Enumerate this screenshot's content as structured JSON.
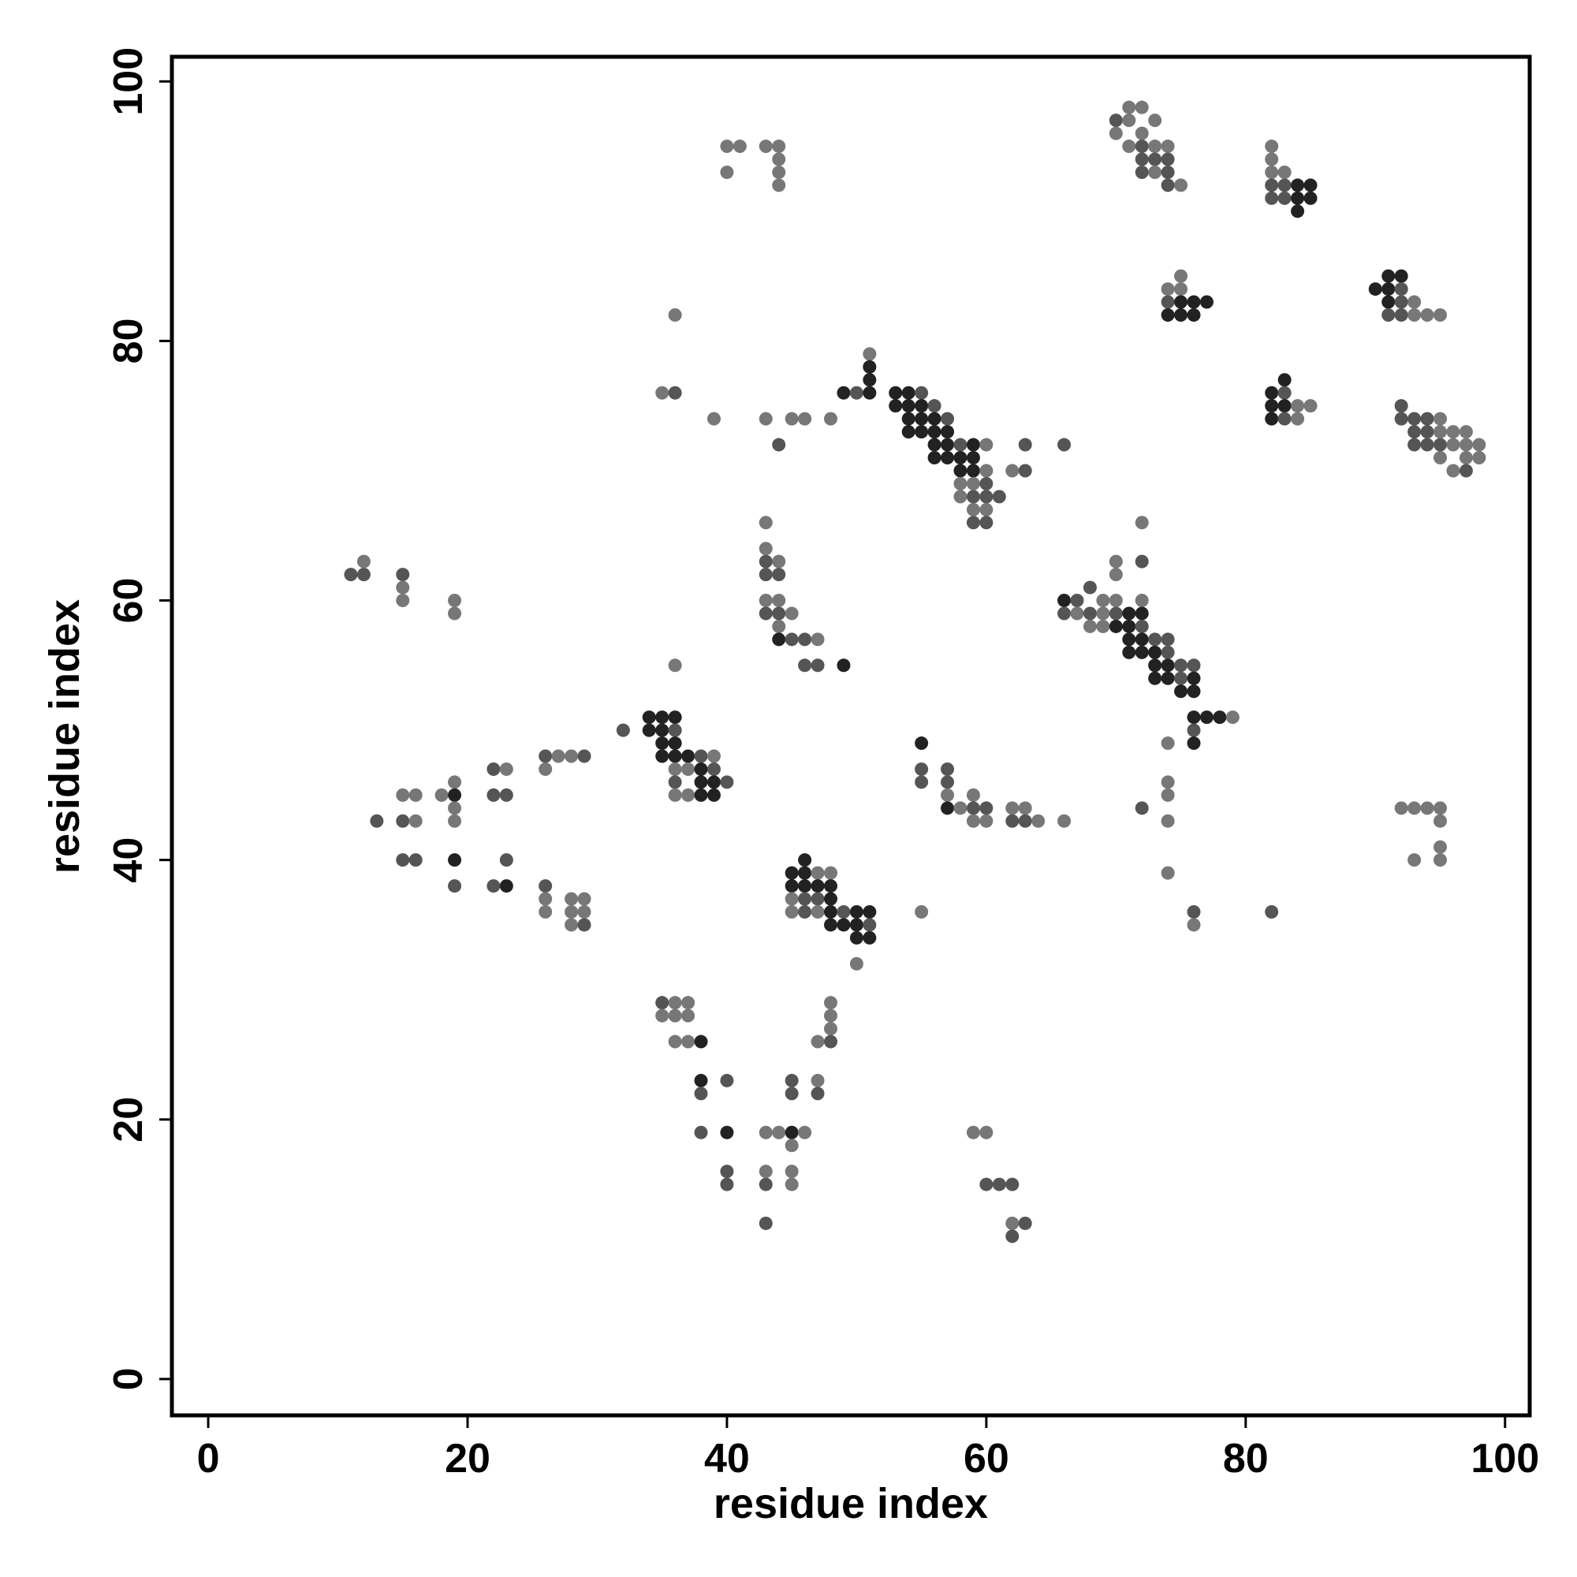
{
  "chart_data": {
    "type": "scatter",
    "xlabel": "residue index",
    "ylabel": "residue index",
    "xlim": [
      -2.8,
      101.9
    ],
    "ylim": [
      -2.8,
      101.9
    ],
    "xticks": [
      0,
      20,
      40,
      60,
      80,
      100
    ],
    "yticks": [
      0,
      20,
      40,
      60,
      80,
      100
    ],
    "grid": false,
    "x": [
      40,
      41,
      40,
      43,
      44,
      44,
      44,
      44,
      70,
      71,
      72,
      70,
      71,
      72,
      73,
      71,
      72,
      73,
      74,
      72,
      73,
      74,
      72,
      73,
      74,
      74,
      75,
      82,
      82,
      82,
      83,
      82,
      83,
      84,
      85,
      82,
      83,
      84,
      85,
      84,
      75,
      74,
      75,
      74,
      75,
      76,
      77,
      74,
      75,
      76,
      91,
      92,
      90,
      91,
      92,
      91,
      92,
      93,
      91,
      92,
      93,
      94,
      95,
      83,
      82,
      83,
      82,
      83,
      84,
      85,
      82,
      83,
      84,
      92,
      92,
      93,
      94,
      95,
      93,
      94,
      95,
      96,
      97,
      93,
      94,
      95,
      96,
      97,
      98,
      95,
      97,
      98,
      96,
      97,
      51,
      51,
      51,
      49,
      50,
      51,
      48,
      53,
      54,
      55,
      53,
      54,
      55,
      56,
      54,
      55,
      56,
      57,
      54,
      55,
      56,
      57,
      56,
      57,
      58,
      59,
      60,
      56,
      57,
      58,
      59,
      58,
      59,
      60,
      62,
      63,
      63,
      66,
      58,
      59,
      60,
      58,
      59,
      60,
      61,
      59,
      60,
      59,
      60,
      36,
      35,
      36,
      39,
      43,
      45,
      46,
      44,
      11,
      12,
      12,
      15,
      15,
      15,
      19,
      19,
      43,
      43,
      43,
      44,
      43,
      44,
      43,
      44,
      43,
      44,
      45,
      44,
      44,
      45,
      46,
      47,
      46,
      47,
      49,
      36,
      72,
      70,
      72,
      70,
      66,
      67,
      68,
      69,
      70,
      72,
      66,
      67,
      68,
      69,
      70,
      71,
      72,
      68,
      69,
      70,
      71,
      72,
      71,
      72,
      73,
      74,
      71,
      72,
      73,
      74,
      73,
      74,
      75,
      76,
      73,
      74,
      75,
      76,
      75,
      76,
      76,
      77,
      78,
      79,
      76,
      76,
      32,
      34,
      35,
      36,
      34,
      35,
      36,
      35,
      36,
      35,
      36,
      37,
      38,
      39,
      36,
      37,
      38,
      39,
      36,
      38,
      39,
      40,
      36,
      37,
      38,
      39,
      26,
      27,
      28,
      29,
      26,
      22,
      23,
      22,
      23,
      15,
      16,
      18,
      19,
      19,
      19,
      19,
      13,
      15,
      16,
      15,
      16,
      19,
      23,
      19,
      22,
      23,
      26,
      26,
      28,
      29,
      26,
      28,
      29,
      28,
      29,
      55,
      55,
      57,
      55,
      57,
      57,
      59,
      57,
      58,
      59,
      60,
      59,
      60,
      62,
      63,
      62,
      63,
      64,
      66,
      74,
      74,
      74,
      72,
      74,
      74,
      76,
      76,
      82,
      92,
      93,
      94,
      95,
      95,
      95,
      93,
      95,
      46,
      45,
      46,
      47,
      48,
      45,
      46,
      47,
      48,
      45,
      46,
      47,
      48,
      45,
      46,
      47,
      48,
      49,
      50,
      51,
      48,
      49,
      50,
      51,
      50,
      51,
      50,
      55,
      35,
      36,
      37,
      35,
      36,
      37,
      36,
      37,
      38,
      48,
      48,
      48,
      47,
      48,
      38,
      40,
      45,
      47,
      38,
      45,
      47,
      38,
      40,
      43,
      44,
      45,
      46,
      45,
      40,
      43,
      45,
      40,
      43,
      45,
      43,
      59,
      60,
      60,
      61,
      62,
      62,
      63,
      62
    ],
    "y": [
      95,
      95,
      93,
      95,
      95,
      94,
      93,
      92,
      97,
      98,
      98,
      96,
      97,
      96,
      97,
      95,
      95,
      95,
      95,
      94,
      94,
      94,
      93,
      93,
      93,
      92,
      92,
      95,
      94,
      93,
      93,
      92,
      92,
      92,
      92,
      91,
      91,
      91,
      91,
      90,
      85,
      84,
      84,
      83,
      83,
      83,
      83,
      82,
      82,
      82,
      85,
      85,
      84,
      84,
      84,
      83,
      83,
      83,
      82,
      82,
      82,
      82,
      82,
      77,
      76,
      76,
      75,
      75,
      75,
      75,
      74,
      74,
      74,
      75,
      74,
      74,
      74,
      74,
      73,
      73,
      73,
      73,
      73,
      72,
      72,
      72,
      72,
      72,
      72,
      71,
      71,
      71,
      70,
      70,
      79,
      78,
      77,
      76,
      76,
      76,
      74,
      76,
      76,
      76,
      75,
      75,
      75,
      75,
      74,
      74,
      74,
      74,
      73,
      73,
      73,
      73,
      72,
      72,
      72,
      72,
      72,
      71,
      71,
      71,
      71,
      70,
      70,
      70,
      70,
      70,
      72,
      72,
      69,
      69,
      69,
      68,
      68,
      68,
      68,
      67,
      67,
      66,
      66,
      82,
      76,
      76,
      74,
      74,
      74,
      74,
      72,
      62,
      62,
      63,
      62,
      61,
      60,
      60,
      59,
      66,
      64,
      63,
      63,
      62,
      62,
      60,
      60,
      59,
      59,
      59,
      58,
      57,
      57,
      57,
      57,
      55,
      55,
      55,
      55,
      66,
      63,
      63,
      62,
      60,
      60,
      61,
      60,
      60,
      60,
      59,
      59,
      59,
      59,
      59,
      59,
      59,
      58,
      58,
      58,
      58,
      58,
      57,
      57,
      57,
      57,
      56,
      56,
      56,
      56,
      55,
      55,
      55,
      55,
      54,
      54,
      54,
      54,
      53,
      53,
      51,
      51,
      51,
      51,
      50,
      49,
      50,
      51,
      51,
      51,
      50,
      50,
      50,
      49,
      49,
      48,
      48,
      48,
      48,
      48,
      47,
      47,
      47,
      47,
      46,
      46,
      46,
      46,
      45,
      45,
      45,
      45,
      48,
      48,
      48,
      48,
      47,
      47,
      47,
      45,
      45,
      45,
      45,
      45,
      46,
      45,
      44,
      43,
      43,
      43,
      43,
      40,
      40,
      40,
      40,
      38,
      38,
      38,
      38,
      37,
      37,
      37,
      36,
      36,
      36,
      35,
      35,
      49,
      47,
      47,
      46,
      46,
      45,
      45,
      44,
      44,
      44,
      44,
      43,
      43,
      44,
      44,
      43,
      43,
      43,
      43,
      49,
      46,
      45,
      44,
      43,
      39,
      36,
      35,
      36,
      44,
      44,
      44,
      44,
      43,
      41,
      40,
      40,
      40,
      39,
      39,
      39,
      39,
      38,
      38,
      38,
      38,
      37,
      37,
      37,
      37,
      36,
      36,
      36,
      36,
      36,
      36,
      36,
      35,
      35,
      35,
      35,
      34,
      34,
      32,
      36,
      29,
      29,
      29,
      28,
      28,
      28,
      26,
      26,
      26,
      29,
      28,
      27,
      26,
      26,
      23,
      23,
      23,
      23,
      22,
      22,
      22,
      19,
      19,
      19,
      19,
      19,
      19,
      18,
      16,
      16,
      16,
      15,
      15,
      15,
      12,
      19,
      19,
      15,
      15,
      15,
      12,
      12,
      11
    ],
    "colors": [
      "#777",
      "#777",
      "#777",
      "#777",
      "#777",
      "#777",
      "#777",
      "#777",
      "#555",
      "#777",
      "#777",
      "#777",
      "#777",
      "#777",
      "#777",
      "#777",
      "#555",
      "#777",
      "#777",
      "#555",
      "#555",
      "#555",
      "#555",
      "#777",
      "#555",
      "#555",
      "#777",
      "#777",
      "#777",
      "#777",
      "#777",
      "#555",
      "#555",
      "#222",
      "#222",
      "#555",
      "#555",
      "#222",
      "#222",
      "#222",
      "#777",
      "#777",
      "#777",
      "#555",
      "#222",
      "#222",
      "#222",
      "#222",
      "#222",
      "#222",
      "#222",
      "#222",
      "#222",
      "#222",
      "#555",
      "#222",
      "#555",
      "#777",
      "#555",
      "#555",
      "#777",
      "#777",
      "#777",
      "#222",
      "#222",
      "#555",
      "#222",
      "#222",
      "#777",
      "#777",
      "#222",
      "#555",
      "#777",
      "#555",
      "#555",
      "#555",
      "#555",
      "#777",
      "#555",
      "#555",
      "#777",
      "#777",
      "#777",
      "#555",
      "#555",
      "#555",
      "#777",
      "#777",
      "#777",
      "#777",
      "#777",
      "#777",
      "#777",
      "#555",
      "#777",
      "#222",
      "#222",
      "#222",
      "#555",
      "#222",
      "#777",
      "#222",
      "#222",
      "#555",
      "#222",
      "#222",
      "#222",
      "#555",
      "#222",
      "#222",
      "#222",
      "#555",
      "#222",
      "#222",
      "#222",
      "#222",
      "#222",
      "#222",
      "#555",
      "#222",
      "#777",
      "#222",
      "#222",
      "#222",
      "#222",
      "#222",
      "#222",
      "#777",
      "#777",
      "#555",
      "#555",
      "#555",
      "#777",
      "#777",
      "#555",
      "#777",
      "#555",
      "#555",
      "#555",
      "#777",
      "#777",
      "#555",
      "#555",
      "#777",
      "#777",
      "#555",
      "#777",
      "#777",
      "#777",
      "#777",
      "#555",
      "#555",
      "#555",
      "#777",
      "#555",
      "#777",
      "#777",
      "#777",
      "#777",
      "#777",
      "#777",
      "#555",
      "#777",
      "#555",
      "#555",
      "#777",
      "#777",
      "#555",
      "#555",
      "#777",
      "#777",
      "#222",
      "#555",
      "#555",
      "#777",
      "#555",
      "#555",
      "#222",
      "#777",
      "#777",
      "#777",
      "#555",
      "#777",
      "#222",
      "#555",
      "#555",
      "#777",
      "#777",
      "#777",
      "#555",
      "#777",
      "#555",
      "#777",
      "#555",
      "#222",
      "#222",
      "#777",
      "#777",
      "#222",
      "#222",
      "#555",
      "#222",
      "#222",
      "#555",
      "#555",
      "#222",
      "#222",
      "#222",
      "#555",
      "#222",
      "#222",
      "#555",
      "#555",
      "#222",
      "#222",
      "#555",
      "#222",
      "#222",
      "#222",
      "#222",
      "#222",
      "#222",
      "#777",
      "#555",
      "#222",
      "#555",
      "#222",
      "#222",
      "#222",
      "#222",
      "#222",
      "#555",
      "#222",
      "#222",
      "#222",
      "#222",
      "#222",
      "#555",
      "#777",
      "#777",
      "#777",
      "#222",
      "#555",
      "#555",
      "#222",
      "#222",
      "#555",
      "#777",
      "#777",
      "#222",
      "#222",
      "#555",
      "#777",
      "#777",
      "#555",
      "#777",
      "#555",
      "#777",
      "#555",
      "#555",
      "#777",
      "#777",
      "#777",
      "#777",
      "#222",
      "#777",
      "#777",
      "#555",
      "#555",
      "#777",
      "#555",
      "#555",
      "#222",
      "#555",
      "#555",
      "#555",
      "#222",
      "#555",
      "#777",
      "#777",
      "#777",
      "#777",
      "#777",
      "#777",
      "#777",
      "#555",
      "#222",
      "#555",
      "#555",
      "#555",
      "#555",
      "#777",
      "#777",
      "#222",
      "#777",
      "#555",
      "#555",
      "#777",
      "#777",
      "#777",
      "#777",
      "#555",
      "#555",
      "#777",
      "#777",
      "#777",
      "#777",
      "#777",
      "#555",
      "#777",
      "#777",
      "#555",
      "#777",
      "#555",
      "#777",
      "#777",
      "#777",
      "#777",
      "#777",
      "#777",
      "#777",
      "#777",
      "#222",
      "#222",
      "#222",
      "#777",
      "#777",
      "#222",
      "#222",
      "#222",
      "#222",
      "#777",
      "#555",
      "#555",
      "#222",
      "#777",
      "#555",
      "#777",
      "#222",
      "#555",
      "#222",
      "#222",
      "#222",
      "#222",
      "#222",
      "#555",
      "#222",
      "#222",
      "#777",
      "#777",
      "#555",
      "#777",
      "#777",
      "#777",
      "#777",
      "#777",
      "#777",
      "#777",
      "#222",
      "#777",
      "#777",
      "#777",
      "#777",
      "#555",
      "#222",
      "#555",
      "#555",
      "#777",
      "#555",
      "#555",
      "#555",
      "#555",
      "#222",
      "#777",
      "#777",
      "#222",
      "#777",
      "#777",
      "#555",
      "#777",
      "#777",
      "#555",
      "#555",
      "#777",
      "#555",
      "#777",
      "#777",
      "#555",
      "#555",
      "#555",
      "#777",
      "#555",
      "#555"
    ]
  }
}
